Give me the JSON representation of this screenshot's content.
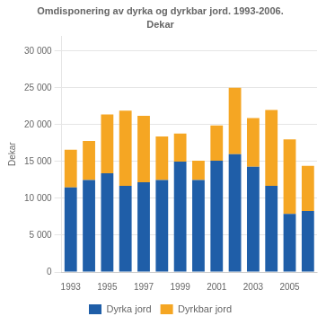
{
  "chart_data": {
    "type": "bar",
    "title": "Omdisponering av dyrka og dyrkbar jord. 1993-2006.",
    "subtitle": "Dekar",
    "ylabel": "Dekar",
    "categories": [
      "1993",
      null,
      "1995",
      null,
      "1997",
      null,
      "1999",
      null,
      "2001",
      null,
      "2003",
      null,
      "2005",
      null
    ],
    "series": [
      {
        "name": "Dyrka jord",
        "color": "#1f5ea8",
        "values": [
          11500,
          12500,
          13400,
          11700,
          12200,
          12500,
          15000,
          12500,
          15100,
          16000,
          14300,
          11700,
          7900,
          8300
        ]
      },
      {
        "name": "Dyrkbar jord",
        "color": "#f5a623",
        "values": [
          5100,
          5300,
          8000,
          10200,
          9000,
          5900,
          3800,
          2600,
          4800,
          9000,
          6600,
          10300,
          10100,
          6100
        ]
      }
    ],
    "stacked": true,
    "ylim": [
      0,
      32000
    ],
    "yticks": [
      0,
      {
        "value": 5000,
        "label": "5 000"
      },
      {
        "value": 10000,
        "label": "10 000"
      },
      {
        "value": 15000,
        "label": "15 000"
      },
      {
        "value": 20000,
        "label": "20 000"
      },
      {
        "value": 25000,
        "label": "25 000"
      },
      {
        "value": 30000,
        "label": "30 000"
      }
    ],
    "grid": true,
    "legend": "bottom"
  }
}
